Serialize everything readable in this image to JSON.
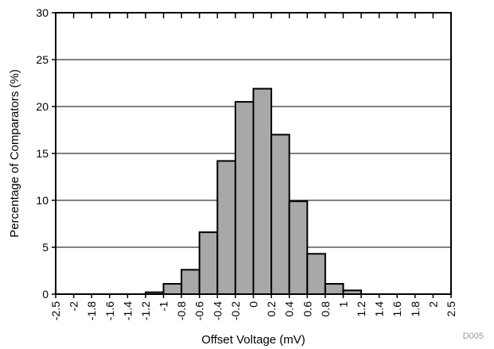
{
  "chart_data": {
    "type": "bar",
    "xlabel": "Offset Voltage (mV)",
    "ylabel": "Percentage of Comparators (%)",
    "ylim": [
      0,
      30
    ],
    "yticks": [
      "0",
      "5",
      "10",
      "15",
      "20",
      "25",
      "30"
    ],
    "xticks": [
      "-2.5",
      "-2",
      "-1.8",
      "-1.6",
      "-1.4",
      "-1.2",
      "-1",
      "-0.8",
      "-0.6",
      "-0.4",
      "-0.2",
      "0",
      "0.2",
      "0.4",
      "0.6",
      "0.8",
      "1",
      "1.2",
      "1.4",
      "1.6",
      "1.8",
      "2",
      "2.5"
    ],
    "bins": [
      {
        "from": "-1.2",
        "to": "-1",
        "value": 0.2
      },
      {
        "from": "-1",
        "to": "-0.8",
        "value": 1.1
      },
      {
        "from": "-0.8",
        "to": "-0.6",
        "value": 2.6
      },
      {
        "from": "-0.6",
        "to": "-0.4",
        "value": 6.6
      },
      {
        "from": "-0.4",
        "to": "-0.2",
        "value": 14.2
      },
      {
        "from": "-0.2",
        "to": "0",
        "value": 20.5
      },
      {
        "from": "0",
        "to": "0.2",
        "value": 21.9
      },
      {
        "from": "0.2",
        "to": "0.4",
        "value": 17.0
      },
      {
        "from": "0.4",
        "to": "0.6",
        "value": 9.9
      },
      {
        "from": "0.6",
        "to": "0.8",
        "value": 4.3
      },
      {
        "from": "0.8",
        "to": "1",
        "value": 1.1
      },
      {
        "from": "1",
        "to": "1.2",
        "value": 0.4
      }
    ],
    "grid": "horizontal",
    "bar_color": "#a8a8a8",
    "edge_color": "#000000",
    "code": "D005"
  }
}
